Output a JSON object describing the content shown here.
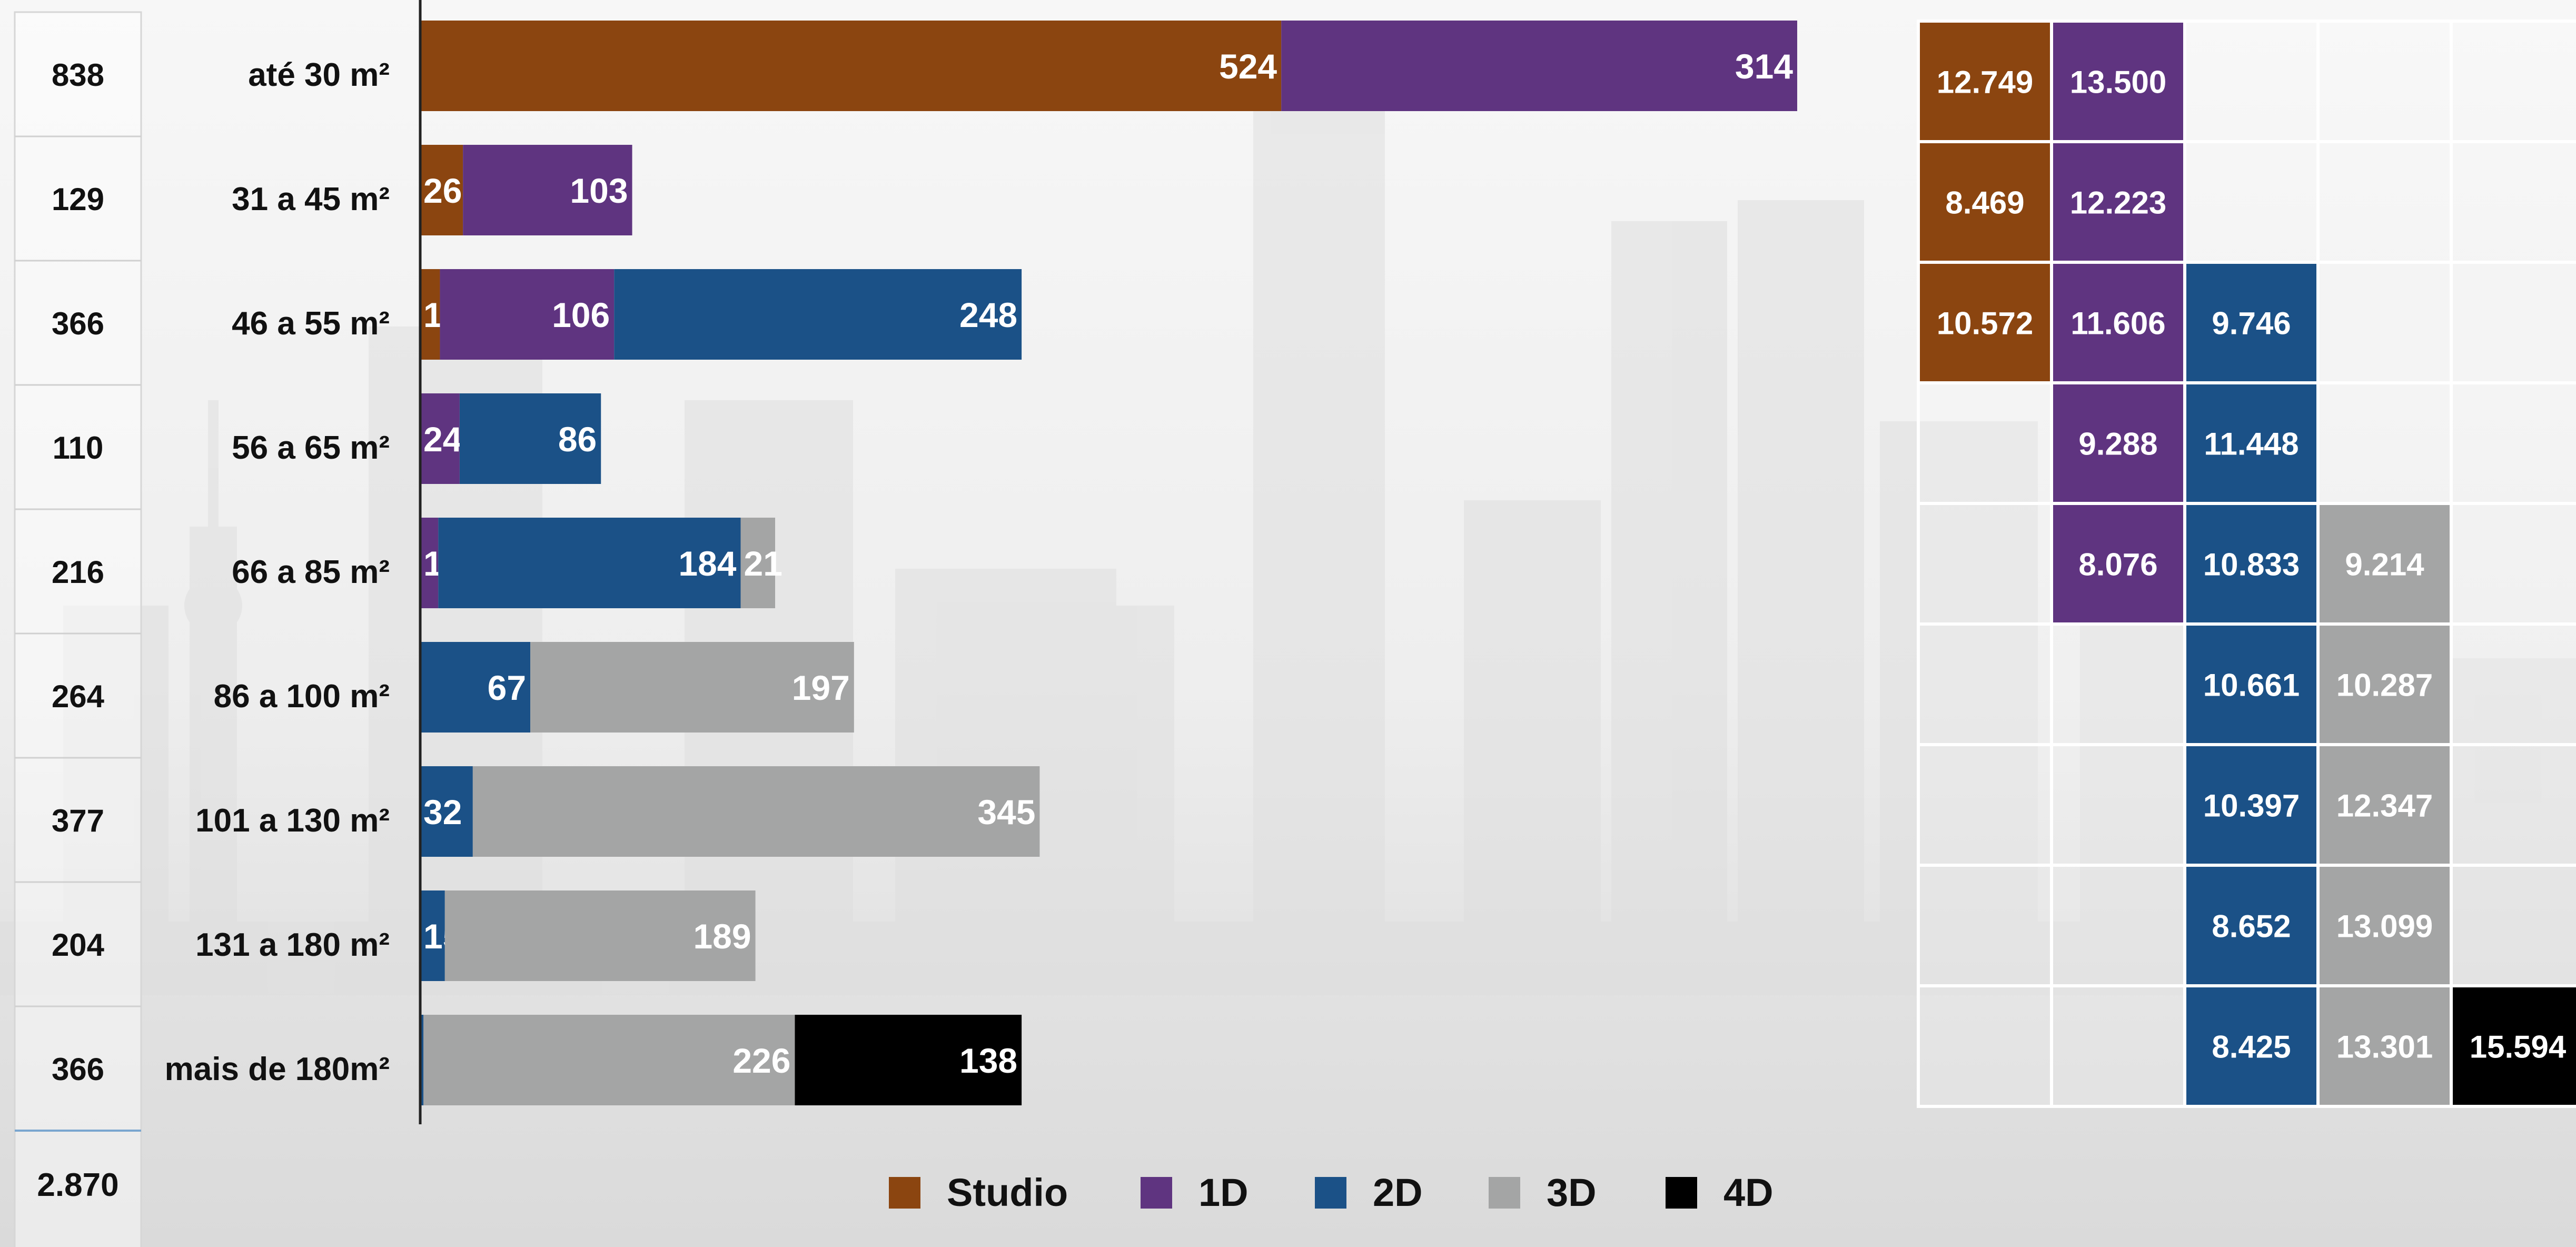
{
  "chart_data": {
    "type": "bar",
    "orientation": "horizontal",
    "stacked": true,
    "categories": [
      "até 30 m²",
      "31 a 45 m²",
      "46 a 55 m²",
      "56 a 65 m²",
      "66 a 85 m²",
      "86 a 100 m²",
      "101 a 130 m²",
      "131 a 180 m²",
      "mais de 180m²"
    ],
    "series": [
      {
        "name": "Studio",
        "values": [
          524,
          26,
          12,
          null,
          null,
          null,
          null,
          null,
          null
        ]
      },
      {
        "name": "1D",
        "values": [
          314,
          103,
          106,
          24,
          11,
          null,
          null,
          null,
          null
        ]
      },
      {
        "name": "2D",
        "values": [
          null,
          null,
          248,
          86,
          184,
          67,
          32,
          15,
          2
        ]
      },
      {
        "name": "3D",
        "values": [
          null,
          null,
          null,
          null,
          21,
          197,
          345,
          189,
          226
        ]
      },
      {
        "name": "4D",
        "values": [
          null,
          null,
          null,
          null,
          null,
          null,
          null,
          null,
          138
        ]
      }
    ],
    "row_totals": [
      "838",
      "129",
      "366",
      "110",
      "216",
      "264",
      "377",
      "204",
      "366"
    ],
    "grand_total": "2.870",
    "price_table": [
      [
        "12.749",
        "13.500",
        null,
        null,
        null
      ],
      [
        "8.469",
        "12.223",
        null,
        null,
        null
      ],
      [
        "10.572",
        "11.606",
        "9.746",
        null,
        null
      ],
      [
        null,
        "9.288",
        "11.448",
        null,
        null
      ],
      [
        null,
        "8.076",
        "10.833",
        "9.214",
        null
      ],
      [
        null,
        null,
        "10.661",
        "10.287",
        null
      ],
      [
        null,
        null,
        "10.397",
        "12.347",
        null
      ],
      [
        null,
        null,
        "8.652",
        "13.099",
        null
      ],
      [
        null,
        null,
        "8.425",
        "13.301",
        "15.594"
      ]
    ],
    "xlim": [
      0,
      838
    ],
    "legend_position": "bottom",
    "colors": {
      "Studio": "#8b4510",
      "1D": "#5f3480",
      "2D": "#1b5187",
      "3D": "#a4a5a5",
      "4D": "#000000"
    }
  }
}
